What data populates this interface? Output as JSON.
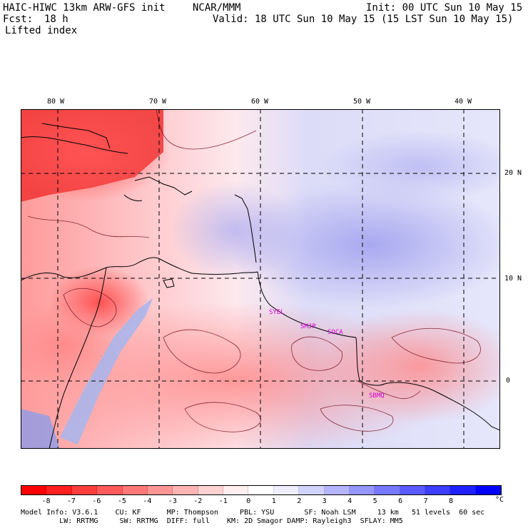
{
  "header": {
    "model_title": "HAIC-HIWC 13km ARW-GFS init",
    "center": "NCAR/MMM",
    "init": "Init: 00 UTC Sun 10 May 15",
    "fcst_label": "Fcst:",
    "fcst_value": "18 h",
    "valid": "Valid: 18 UTC Sun 10 May 15 (15 LST Sun 10 May 15)",
    "field": "Lifted index"
  },
  "map": {
    "lon_labels": [
      "80 W",
      "70 W",
      "60 W",
      "50 W",
      "40 W"
    ],
    "lat_labels": [
      "20 N",
      "10 N",
      "0"
    ],
    "stations": [
      "SYEL",
      "SMJP",
      "SOCA",
      "SBMQ"
    ]
  },
  "colorbar": {
    "unit": "°C",
    "ticks": [
      "-8",
      "-7",
      "-6",
      "-5",
      "-4",
      "-3",
      "-2",
      "-1",
      "0",
      "1",
      "2",
      "3",
      "4",
      "5",
      "6",
      "7",
      "8"
    ],
    "colors": [
      "#ff0000",
      "#ff1f1f",
      "#ff3d3d",
      "#ff5a5a",
      "#ff7878",
      "#ff9696",
      "#ffb4b4",
      "#ffd2d2",
      "#ffeeee",
      "#ffffff",
      "#eeeeff",
      "#d2d2ff",
      "#b4b4ff",
      "#9696ff",
      "#7878ff",
      "#5a5aff",
      "#3d3dff",
      "#1f1fff",
      "#0000ff"
    ]
  },
  "model_info": {
    "line1": "Model Info: V3.6.1    CU: KF      MP: Thompson     PBL: YSU       SF: Noah LSM     13 km   51 levels  60 sec",
    "line2": "         LW: RRTMG     SW: RRTMG  DIFF: full    KM: 2D Smagor DAMP: Rayleigh3  SFLAY: MM5"
  }
}
